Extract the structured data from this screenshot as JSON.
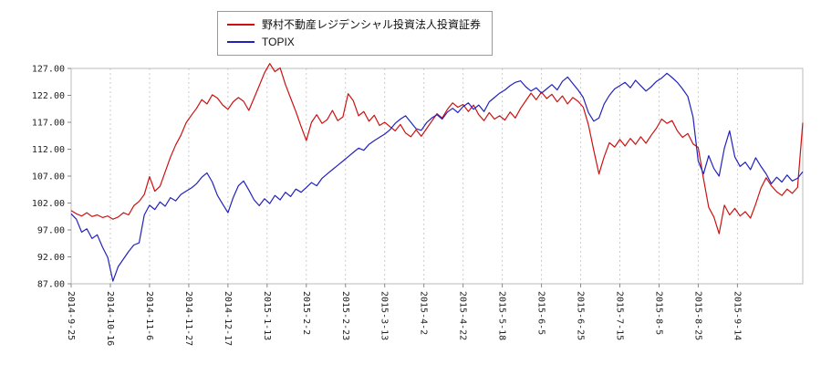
{
  "colors": {
    "background": "#ffffff",
    "grid": "#cccccc",
    "axis": "#888888",
    "plot_border": "#bbbbbb",
    "tick_text": "#222222",
    "legend_border": "#999999"
  },
  "chart_data": {
    "type": "line",
    "title": "",
    "grid": "vertical-dotted",
    "legend_position": "top-center",
    "x_count": 141,
    "x_tick_positions": [
      0,
      7.5,
      15,
      22.5,
      30,
      37.5,
      45,
      52.5,
      60,
      67.5,
      75,
      82.5,
      90,
      97.5,
      105,
      112.5,
      120,
      127.5
    ],
    "x_tick_labels": [
      "2014-9-25",
      "2014-10-16",
      "2014-11-6",
      "2014-11-27",
      "2014-12-17",
      "2015-1-13",
      "2015-2-2",
      "2015-2-23",
      "2015-3-13",
      "2015-4-2",
      "2015-4-22",
      "2015-5-18",
      "2015-6-5",
      "2015-6-25",
      "2015-7-15",
      "2015-8-5",
      "2015-8-25",
      "2015-9-14"
    ],
    "ylim": [
      87,
      127
    ],
    "y_tick_values": [
      87,
      92,
      97,
      102,
      107,
      112,
      117,
      122,
      127
    ],
    "y_tick_labels": [
      "87.00",
      "92.00",
      "97.00",
      "102.00",
      "107.00",
      "112.00",
      "117.00",
      "122.00",
      "127.00"
    ],
    "legend": [
      {
        "label": "野村不動産レジデンシャル投資法人投資証券",
        "color": "#cc1111"
      },
      {
        "label": "TOPIX",
        "color": "#2222bb"
      }
    ],
    "series": [
      {
        "name": "野村不動産レジデンシャル投資法人投資証券",
        "color": "#cc1111",
        "values": [
          100.6,
          100.0,
          99.6,
          100.2,
          99.5,
          99.8,
          99.3,
          99.6,
          99.0,
          99.4,
          100.2,
          99.8,
          101.5,
          102.3,
          103.6,
          106.9,
          104.2,
          105.1,
          107.8,
          110.5,
          112.8,
          114.6,
          116.9,
          118.3,
          119.6,
          121.2,
          120.4,
          122.1,
          121.5,
          120.2,
          119.4,
          120.8,
          121.6,
          120.9,
          119.2,
          121.5,
          123.8,
          126.2,
          127.9,
          126.4,
          127.1,
          124.0,
          121.5,
          119.0,
          116.2,
          113.6,
          117.0,
          118.4,
          116.8,
          117.5,
          119.2,
          117.3,
          118.0,
          122.3,
          121.0,
          118.2,
          119.0,
          117.2,
          118.3,
          116.4,
          117.0,
          116.2,
          115.4,
          116.6,
          115.0,
          114.3,
          115.6,
          114.4,
          115.8,
          117.2,
          118.6,
          117.8,
          119.4,
          120.6,
          119.8,
          120.3,
          119.0,
          120.2,
          118.4,
          117.3,
          118.8,
          117.6,
          118.2,
          117.4,
          118.9,
          117.8,
          119.6,
          121.0,
          122.4,
          121.2,
          122.6,
          121.4,
          122.2,
          120.8,
          121.9,
          120.4,
          121.6,
          120.9,
          119.8,
          116.5,
          111.8,
          107.4,
          110.6,
          113.2,
          112.4,
          113.8,
          112.6,
          114.0,
          112.9,
          114.3,
          113.1,
          114.6,
          115.9,
          117.6,
          116.8,
          117.3,
          115.4,
          114.2,
          114.9,
          113.0,
          112.3,
          106.5,
          101.2,
          99.4,
          96.3,
          101.6,
          99.8,
          101.0,
          99.6,
          100.4,
          99.2,
          101.8,
          104.8,
          106.7,
          105.2,
          104.1,
          103.4,
          104.6,
          103.8,
          104.9,
          116.9
        ]
      },
      {
        "name": "TOPIX",
        "color": "#2222bb",
        "values": [
          100.0,
          99.0,
          96.6,
          97.2,
          95.4,
          96.1,
          93.8,
          91.9,
          87.5,
          90.2,
          91.6,
          93.0,
          94.2,
          94.6,
          99.8,
          101.6,
          100.8,
          102.2,
          101.4,
          103.0,
          102.4,
          103.6,
          104.2,
          104.8,
          105.6,
          106.8,
          107.6,
          105.9,
          103.4,
          101.8,
          100.2,
          103.0,
          105.2,
          106.1,
          104.4,
          102.6,
          101.5,
          102.8,
          101.9,
          103.4,
          102.6,
          104.0,
          103.2,
          104.6,
          104.0,
          104.9,
          105.8,
          105.2,
          106.6,
          107.4,
          108.2,
          109.0,
          109.8,
          110.6,
          111.4,
          112.2,
          111.8,
          112.9,
          113.6,
          114.2,
          114.8,
          115.6,
          116.8,
          117.6,
          118.2,
          117.0,
          115.8,
          115.5,
          116.9,
          117.8,
          118.4,
          117.6,
          118.9,
          119.6,
          118.8,
          119.9,
          120.6,
          119.4,
          120.2,
          119.0,
          120.8,
          121.6,
          122.4,
          123.0,
          123.8,
          124.4,
          124.7,
          123.6,
          122.8,
          123.4,
          122.4,
          123.2,
          124.0,
          123.0,
          124.6,
          125.4,
          124.2,
          123.0,
          121.6,
          118.8,
          117.2,
          117.8,
          120.4,
          122.0,
          123.2,
          123.8,
          124.4,
          123.4,
          124.8,
          123.8,
          122.8,
          123.6,
          124.6,
          125.2,
          126.1,
          125.3,
          124.4,
          123.2,
          121.8,
          118.0,
          109.8,
          107.4,
          110.8,
          108.4,
          107.0,
          112.2,
          115.4,
          110.6,
          108.8,
          109.6,
          108.2,
          110.4,
          108.8,
          107.4,
          105.6,
          106.8,
          105.9,
          107.2,
          106.1,
          106.6,
          107.8
        ]
      }
    ]
  }
}
